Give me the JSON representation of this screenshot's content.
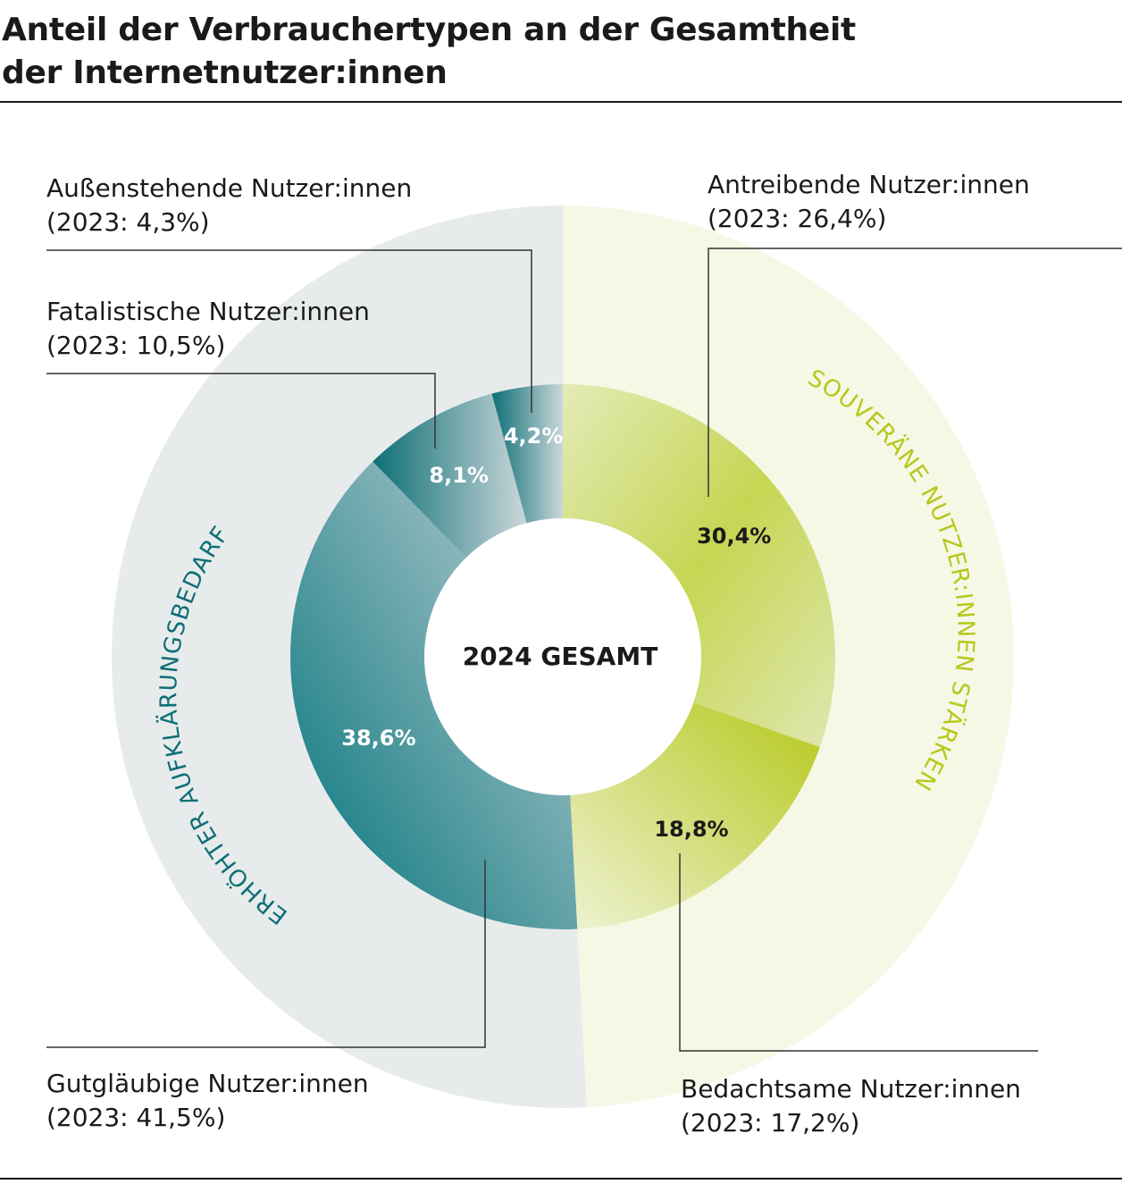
{
  "title": {
    "line1": "Anteil der Verbrauchertypen an der Gesamtheit",
    "line2": "der Internetnutzer:innen"
  },
  "center_label": "2024 GESAMT",
  "group_labels": {
    "left": "ERHÖHTER AUFKLÄRUNGSBEDARF",
    "right": "SOUVERÄNE NUTZER:INNEN STÄRKEN"
  },
  "colors": {
    "teal_dark": "#00737a",
    "teal_light": "#c5d2d6",
    "green_dark": "#b5c81c",
    "green_light": "#eef2d2",
    "left_bg": "#e8ebec",
    "right_bg": "#f6f8e6"
  },
  "legend": [
    {
      "name": "Außenstehende Nutzer:innen",
      "prev": "(2023: 4,3%)"
    },
    {
      "name": "Fatalistische Nutzer:innen",
      "prev": "(2023: 10,5%)"
    },
    {
      "name": "Gutgläubige Nutzer:innen",
      "prev": "(2023: 41,5%)"
    },
    {
      "name": "Antreibende Nutzer:innen",
      "prev": "(2023: 26,4%)"
    },
    {
      "name": "Bedachtsame Nutzer:innen",
      "prev": "(2023: 17,2%)"
    }
  ],
  "chart_data": {
    "type": "pie",
    "style": "donut",
    "title": "Anteil der Verbrauchertypen an der Gesamtheit der Internetnutzer:innen",
    "unit": "%",
    "slices": [
      {
        "name": "Antreibende Nutzer:innen",
        "value": 30.4,
        "label": "30,4%",
        "prev_2023": 26.4,
        "group": "right"
      },
      {
        "name": "Bedachtsame Nutzer:innen",
        "value": 18.8,
        "label": "18,8%",
        "prev_2023": 17.2,
        "group": "right"
      },
      {
        "name": "Gutgläubige Nutzer:innen",
        "value": 38.6,
        "label": "38,6%",
        "prev_2023": 41.5,
        "group": "left"
      },
      {
        "name": "Fatalistische Nutzer:innen",
        "value": 8.1,
        "label": "8,1%",
        "prev_2023": 10.5,
        "group": "left"
      },
      {
        "name": "Außenstehende Nutzer:innen",
        "value": 4.2,
        "label": "4,2%",
        "prev_2023": 4.3,
        "group": "left"
      }
    ],
    "start_angle": "12 o'clock",
    "direction": "clockwise"
  }
}
